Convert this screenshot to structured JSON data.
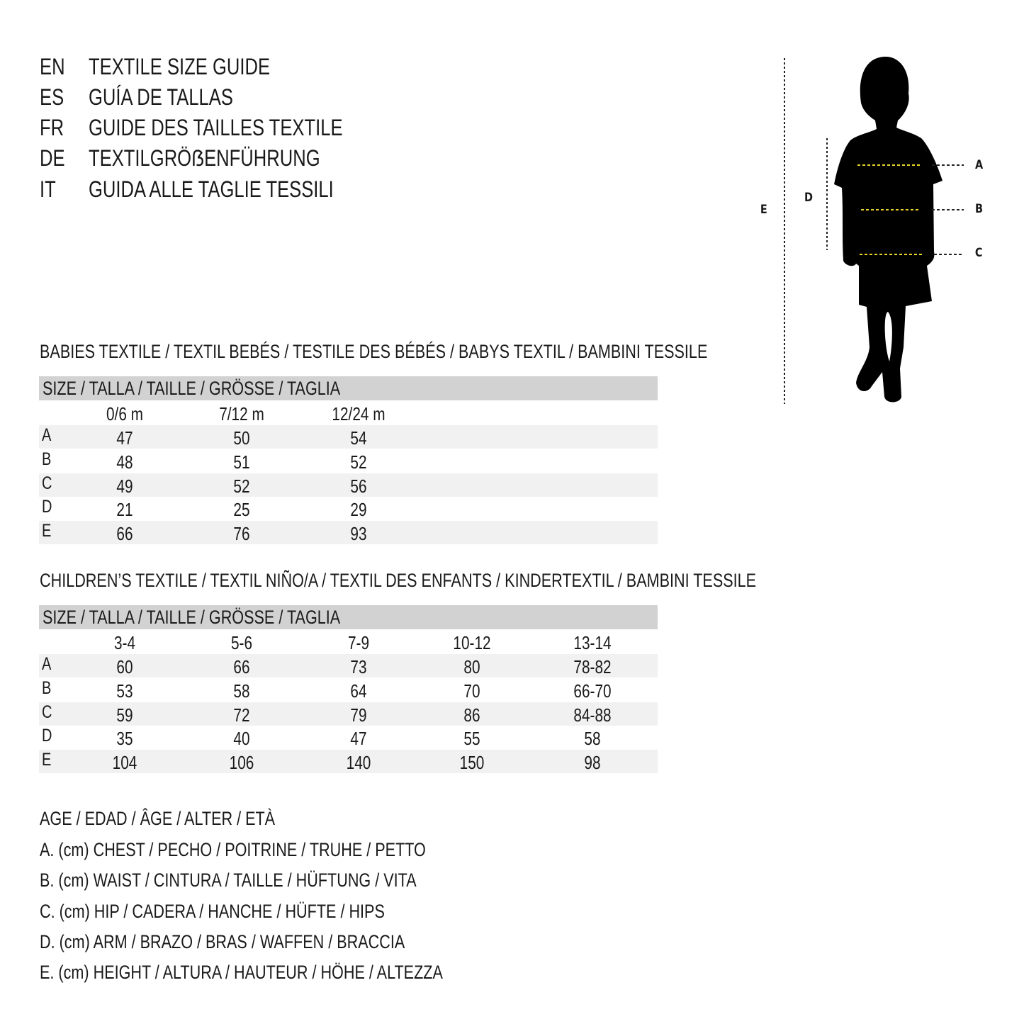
{
  "titles": [
    {
      "code": "EN",
      "text": "TEXTILE SIZE GUIDE"
    },
    {
      "code": "ES",
      "text": "GUÍA DE TALLAS"
    },
    {
      "code": "FR",
      "text": "GUIDE DES TAILLES TEXTILE"
    },
    {
      "code": "DE",
      "text": "TEXTILGRÖẞENFÜHRUNG"
    },
    {
      "code": "IT",
      "text": "GUIDA ALLE TAGLIE TESSILI"
    }
  ],
  "figure": {
    "labels": {
      "a": "A",
      "b": "B",
      "c": "C",
      "d": "D",
      "e": "E"
    },
    "measure_line_color": "#e8d42a"
  },
  "babies": {
    "title": "BABIES TEXTILE / TEXTIL BEBÉS / TESTILE DES BÉBÉS / BABYS TEXTIL / BAMBINI TESSILE",
    "size_header": "SIZE / TALLA / TAILLE / GRÖSSE / TAGLIA",
    "columns": [
      "0/6 m",
      "7/12 m",
      "12/24 m"
    ],
    "rows": [
      {
        "label": "A",
        "values": [
          "47",
          "50",
          "54"
        ]
      },
      {
        "label": "B",
        "values": [
          "48",
          "51",
          "52"
        ]
      },
      {
        "label": "C",
        "values": [
          "49",
          "52",
          "56"
        ]
      },
      {
        "label": "D",
        "values": [
          "21",
          "25",
          "29"
        ]
      },
      {
        "label": "E",
        "values": [
          "66",
          "76",
          "93"
        ]
      }
    ]
  },
  "children": {
    "title": "CHILDREN’S TEXTILE / TEXTIL NIÑO/A / TEXTIL DES ENFANTS / KINDERTEXTIL / BAMBINI TESSILE",
    "size_header": "SIZE / TALLA / TAILLE / GRÖSSE / TAGLIA",
    "columns": [
      "3-4",
      "5-6",
      "7-9",
      "10-12",
      "13-14"
    ],
    "rows": [
      {
        "label": "A",
        "values": [
          "60",
          "66",
          "73",
          "80",
          "78-82"
        ]
      },
      {
        "label": "B",
        "values": [
          "53",
          "58",
          "64",
          "70",
          "66-70"
        ]
      },
      {
        "label": "C",
        "values": [
          "59",
          "72",
          "79",
          "86",
          "84-88"
        ]
      },
      {
        "label": "D",
        "values": [
          "35",
          "40",
          "47",
          "55",
          "58"
        ]
      },
      {
        "label": "E",
        "values": [
          "104",
          "106",
          "140",
          "150",
          "98"
        ]
      }
    ]
  },
  "legend": [
    "AGE / EDAD / ÂGE / ALTER / ETÀ",
    "A. (cm) CHEST / PECHO / POITRINE / TRUHE / PETTO",
    "B. (cm) WAIST / CINTURA / TAILLE / HÜFTUNG / VITA",
    "C. (cm) HIP / CADERA / HANCHE / HÜFTE / HIPS",
    "D. (cm) ARM / BRAZO / BRAS / WAFFEN / BRACCIA",
    "E. (cm) HEIGHT / ALTURA / HAUTEUR / HÖHE / ALTEZZA"
  ]
}
